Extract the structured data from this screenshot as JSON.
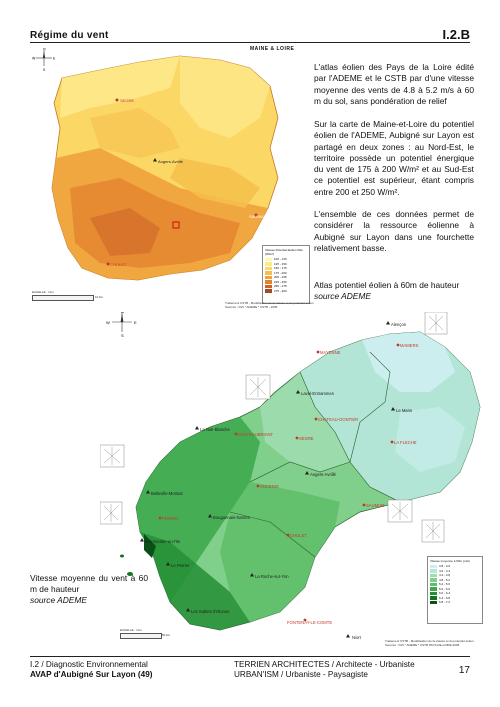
{
  "header": {
    "title": "Régime du vent",
    "code": "I.2.B"
  },
  "top_map": {
    "title": "MAINE & LOIRE",
    "labels": [
      "SEGRE",
      "Angers-Avrillé",
      "SAUMUR",
      "CHOLET"
    ],
    "legend": {
      "title": "Vitesse Potentiel Eolien 60m (W/m²)",
      "items": [
        {
          "label": "100 - 125",
          "color": "#fff6b0"
        },
        {
          "label": "125 - 150",
          "color": "#fde98a"
        },
        {
          "label": "150 - 175",
          "color": "#fbd766"
        },
        {
          "label": "175 - 200",
          "color": "#f6bf4b"
        },
        {
          "label": "200 - 225",
          "color": "#f0a23c"
        },
        {
          "label": "225 - 250",
          "color": "#e3822f"
        },
        {
          "label": "250 - 275",
          "color": "#cc6326"
        },
        {
          "label": "275 - 300",
          "color": "#a84a1e"
        }
      ]
    },
    "credit": "Traitement CSTB - Modélisation de la vitesse et du potentiel éolien   Sources : IGN * ADEME * CSTB - 2005",
    "scale_label": "ECHELLE : 1cm",
    "scale_value": "10 km"
  },
  "bottom_map": {
    "labels": [
      "Alençon",
      "MAMERS",
      "MAYENNE",
      "Laval-Entrammes",
      "CHATEAU-GONTIER",
      "Le Mans",
      "LA FLECHE",
      "La Noë Blanche",
      "CHATEAUBRIANT",
      "SEGRE",
      "Angers-Avrillé",
      "ANCENIS",
      "SAUMUR",
      "Belleville-Montoir",
      "CHOLET",
      "PORNIC",
      "Noirmoutier-en-l'Ile",
      "Bouguenais-Nantes",
      "Le Perrier",
      "La Roche-sur-Yon",
      "Les Sables d'Olonne",
      "FONTENAY-LE-COMTE",
      "Niort"
    ],
    "legend": {
      "title": "Vitesse moyenne à 60m (m/s)",
      "items": [
        {
          "label": "3.8 - 4.0",
          "color": "#cdeef0"
        },
        {
          "label": "4.0 - 4.4",
          "color": "#b4e6d9"
        },
        {
          "label": "4.4 - 4.8",
          "color": "#9fdcae"
        },
        {
          "label": "4.8 - 5.2",
          "color": "#80cf8a"
        },
        {
          "label": "5.2 - 5.6",
          "color": "#5fbf6a"
        },
        {
          "label": "5.6 - 6.0",
          "color": "#3ea94c"
        },
        {
          "label": "6.0 - 6.4",
          "color": "#258f35"
        },
        {
          "label": "6.4 - 6.8",
          "color": "#137426"
        },
        {
          "label": "6.8 - 7.2",
          "color": "#0a4f18"
        }
      ]
    },
    "credit": "Traitement CSTB - Modélisation de la vitesse et du potentiel éolien   Sources : IGN * ADEME * CSTB PAYS-DE-LOIRE-2005",
    "scale_label": "ECHELLE : 1cm",
    "scale_value": "50 km"
  },
  "text": {
    "p1": "L'atlas éolien des Pays de la Loire édité par l'ADEME et le CSTB par d'une vitesse moyenne des vents de 4.8 à 5.2 m/s à 60 m du sol, sans pondération de relief",
    "p2": "Sur la carte de Maine-et-Loire du potentiel éolien de l'ADEME, Aubigné sur Layon est partagé en deux zones : au Nord-Est, le territoire possède un potentiel énergique du vent de 175 à 200 W/m² et au Sud-Est ce potentiel est supérieur, étant compris entre 200 et 250 W/m².",
    "p3": "L'ensemble de ces données permet de considérer la ressource éolienne à Aubigné sur Layon dans une fourchette relativement basse.",
    "caption1": "Atlas potentiel éolien à 60m de hauteur",
    "caption1_src": "source ADEME",
    "caption2": "Vitesse moyenne du vent à 60 m de hauteur",
    "caption2_src": "source ADEME"
  },
  "footer": {
    "line1": "I.2 / Diagnostic Environnemental",
    "line2": "AVAP d'Aubigné Sur Layon (49)",
    "mid1": "TERRIEN ARCHITECTES / Architecte - Urbaniste",
    "mid2": "URBAN'ISM / Urbaniste - Paysagiste",
    "page": "17"
  },
  "compass": {
    "n": "N",
    "s": "S",
    "e": "E",
    "w": "W"
  }
}
